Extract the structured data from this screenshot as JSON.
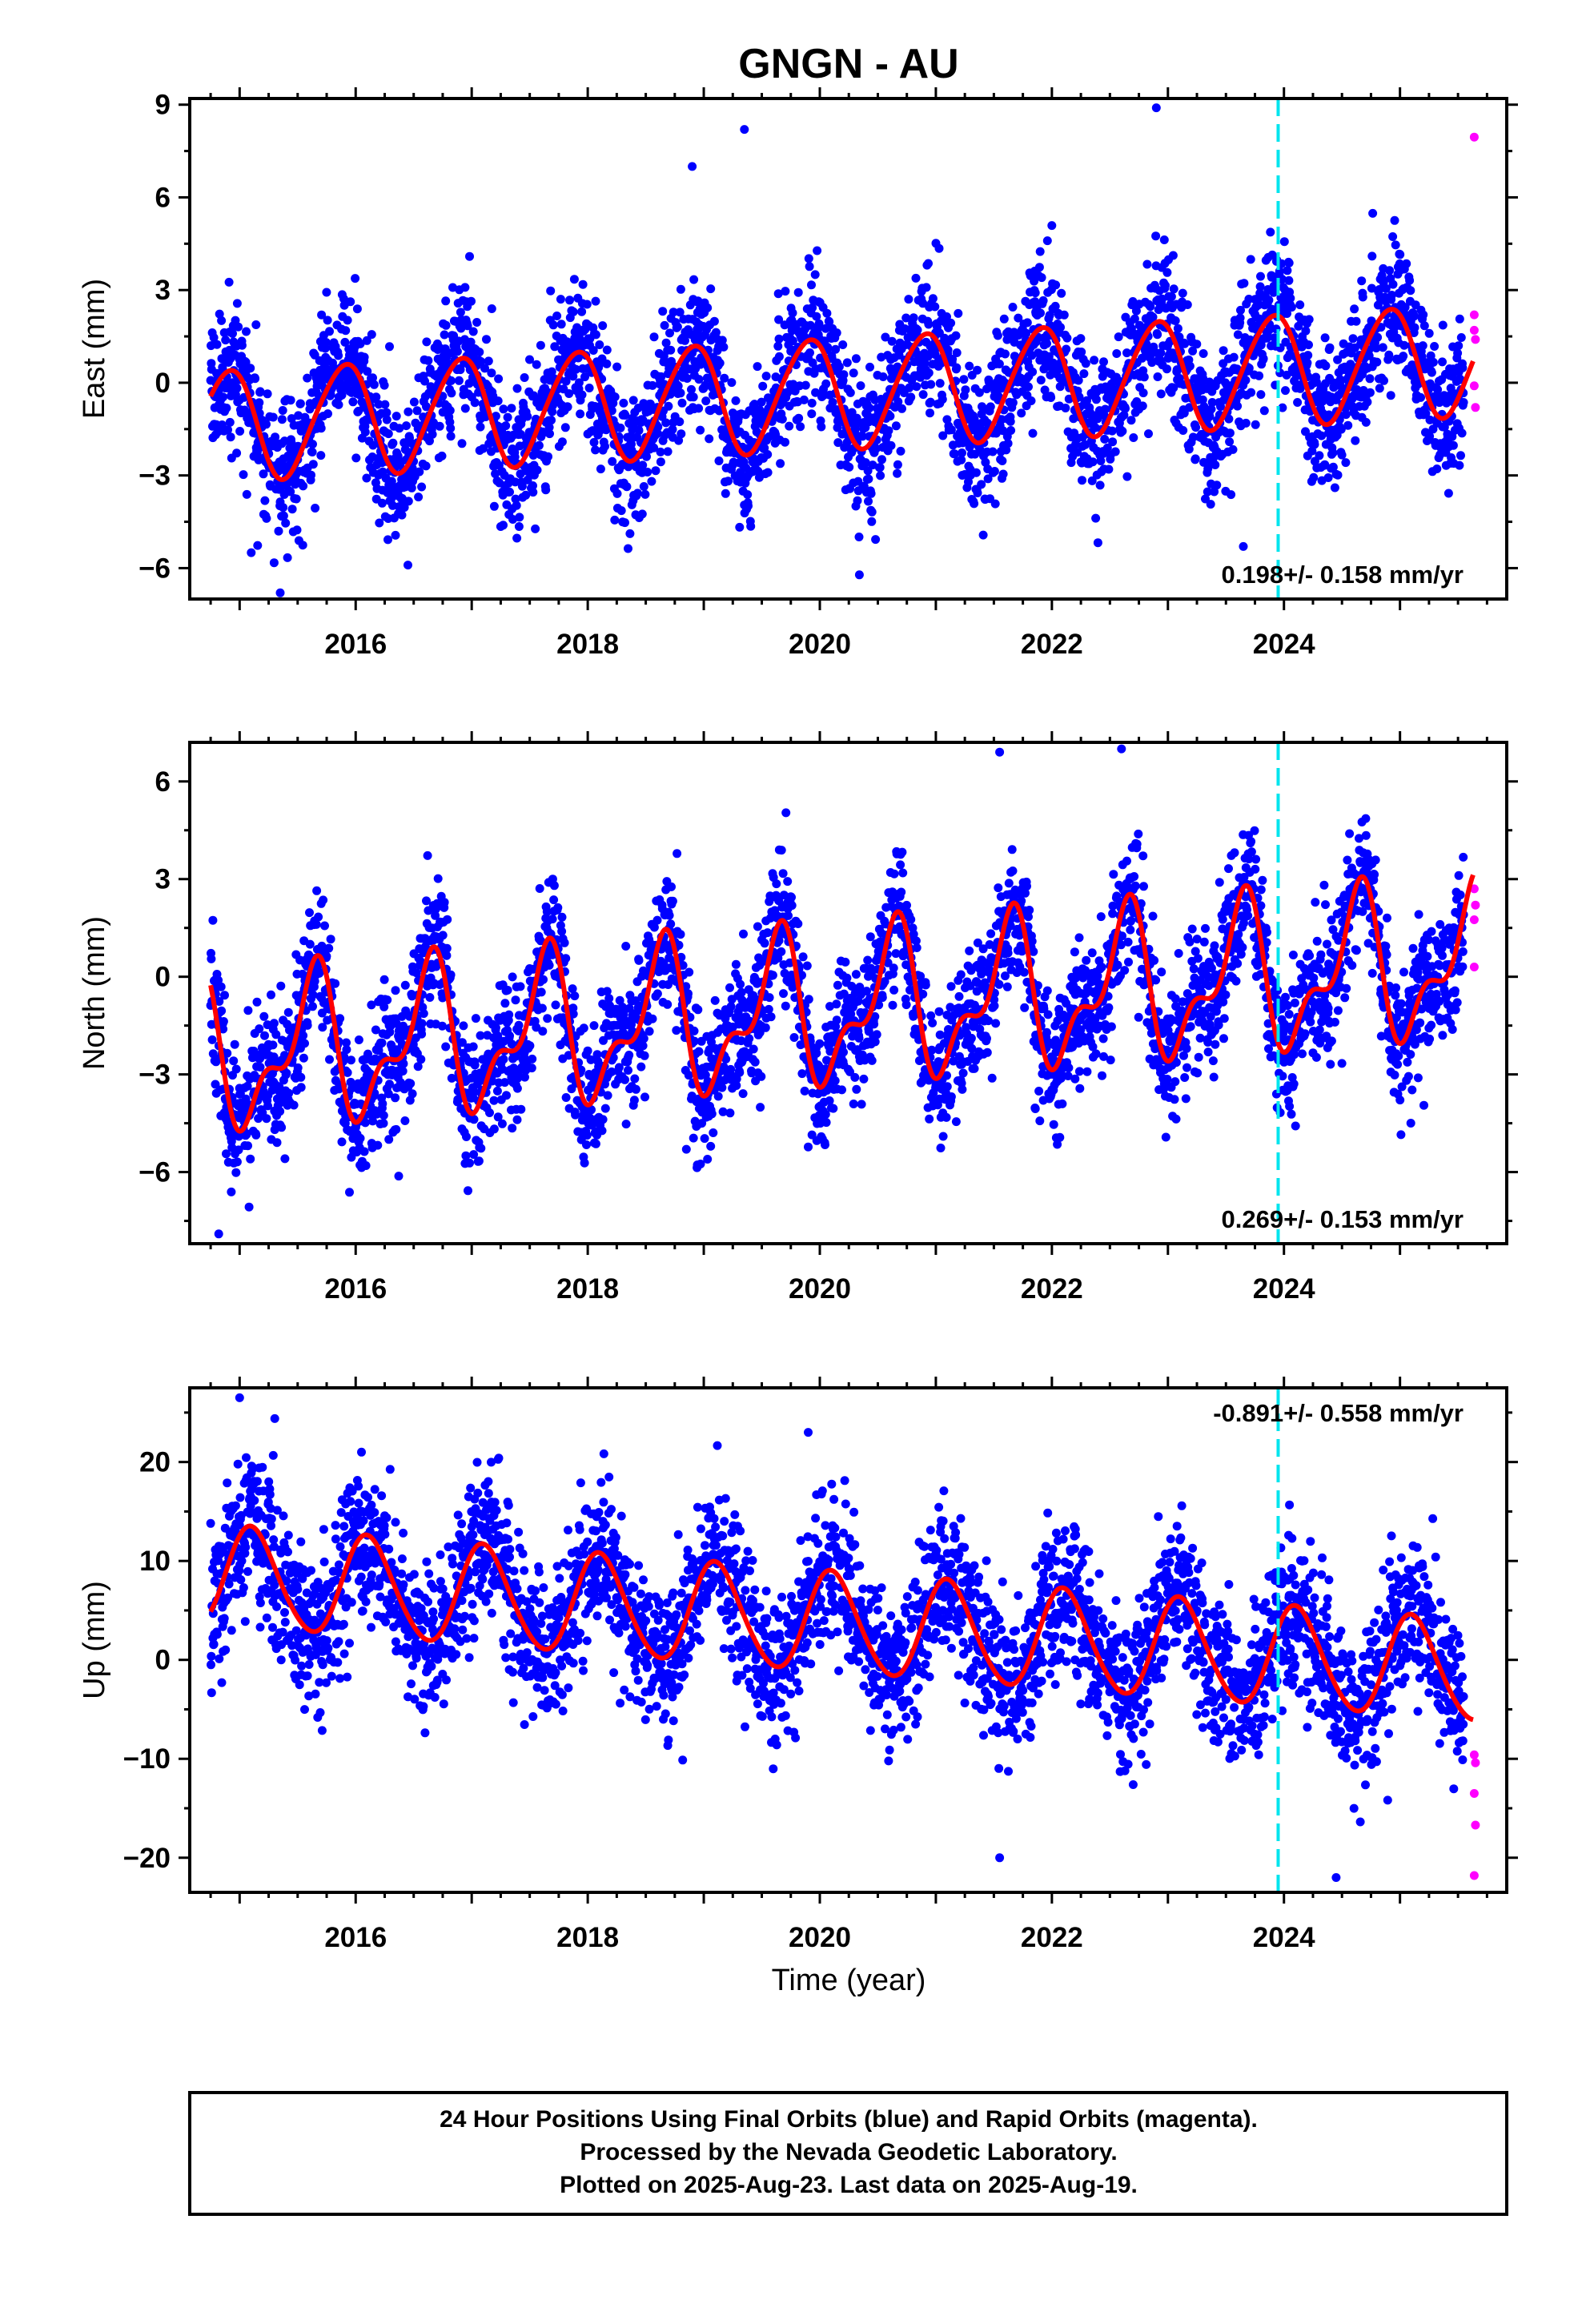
{
  "title": "GNGN - AU",
  "xlabel": "Time (year)",
  "x_tick_labels": [
    "2016",
    "2018",
    "2020",
    "2022",
    "2024"
  ],
  "colors": {
    "final_orbits": "#0000ff",
    "rapid_orbits": "#ff00ff",
    "model": "#ff0000",
    "marker_line": "#00e5ee",
    "frame": "#000000"
  },
  "footer": {
    "line1": "24 Hour Positions Using Final Orbits (blue) and Rapid Orbits (magenta).",
    "line2": "Processed by the Nevada Geodetic Laboratory.",
    "line3": "Plotted on 2025-Aug-23. Last data on 2025-Aug-19."
  },
  "chart_data": [
    {
      "type": "scatter",
      "component": "east",
      "ylabel": "East (mm)",
      "xlim": [
        2014.57,
        2025.92
      ],
      "ylim": [
        -7,
        9.2
      ],
      "yticks": [
        -6,
        -3,
        0,
        3,
        6,
        9
      ],
      "ytick_labels": [
        "−6",
        "−3",
        "0",
        "3",
        "6",
        "9"
      ],
      "x_start": 2014.75,
      "x_end_final": 2025.55,
      "x_end": 2025.63,
      "noise_sd": 1.15,
      "model": {
        "offset": -0.35,
        "rate": 0.198,
        "annual": [
          -1.1,
          1.4
        ],
        "semiannual": [
          0.1,
          0.15
        ]
      },
      "rate_label": "0.198+/- 0.158 mm/yr",
      "rate_label_position": "bottom-right",
      "marker_year": 2023.95,
      "outliers": [
        [
          2019.35,
          8.2
        ],
        [
          2022.9,
          8.9
        ],
        [
          2018.9,
          7.0
        ],
        [
          2015.1,
          -5.5
        ],
        [
          2015.35,
          -6.8
        ],
        [
          2016.45,
          -5.9
        ],
        [
          2023.65,
          -5.3
        ]
      ],
      "rapid_points": [
        [
          2025.64,
          7.95
        ],
        [
          2025.64,
          2.2
        ],
        [
          2025.64,
          1.7
        ],
        [
          2025.65,
          1.4
        ],
        [
          2025.64,
          -0.1
        ],
        [
          2025.65,
          -0.8
        ]
      ]
    },
    {
      "type": "scatter",
      "component": "north",
      "ylabel": "North (mm)",
      "xlim": [
        2014.57,
        2025.92
      ],
      "ylim": [
        -8.2,
        7.2
      ],
      "yticks": [
        -6,
        -3,
        0,
        3,
        6
      ],
      "ytick_labels": [
        "−6",
        "−3",
        "0",
        "3",
        "6"
      ],
      "x_start": 2014.75,
      "x_end_final": 2025.55,
      "x_end": 2025.63,
      "noise_sd": 1.05,
      "model": {
        "offset": -1.05,
        "rate": 0.269,
        "annual": [
          -1.35,
          -1.5
        ],
        "semiannual": [
          0.6,
          -0.85
        ]
      },
      "rate_label": "0.269+/- 0.153 mm/yr",
      "rate_label_position": "bottom-right",
      "marker_year": 2023.95,
      "outliers": [
        [
          2014.82,
          -7.9
        ],
        [
          2021.55,
          6.9
        ],
        [
          2022.6,
          7.0
        ],
        [
          2018.85,
          -5.3
        ],
        [
          2016.95,
          -5.5
        ]
      ],
      "rapid_points": [
        [
          2025.64,
          2.7
        ],
        [
          2025.65,
          2.2
        ],
        [
          2025.64,
          1.75
        ],
        [
          2025.64,
          0.3
        ]
      ]
    },
    {
      "type": "scatter",
      "component": "up",
      "ylabel": "Up (mm)",
      "xlim": [
        2014.57,
        2025.92
      ],
      "ylim": [
        -23.5,
        27.5
      ],
      "yticks": [
        -20,
        -10,
        0,
        10,
        20
      ],
      "ytick_labels": [
        "−20",
        "−10",
        "0",
        "10",
        "20"
      ],
      "x_start": 2014.75,
      "x_end_final": 2025.55,
      "x_end": 2025.63,
      "noise_sd": 3.8,
      "model": {
        "offset": 3.8,
        "rate": -0.891,
        "annual": [
          3.2,
          3.9
        ],
        "semiannual": [
          0.2,
          0.4
        ]
      },
      "rate_label": "-0.891+/- 0.558 mm/yr",
      "rate_label_position": "top-right",
      "marker_year": 2023.95,
      "outliers": [
        [
          2015.0,
          26.5
        ],
        [
          2019.9,
          23.0
        ],
        [
          2016.05,
          21.0
        ],
        [
          2021.55,
          -20.0
        ],
        [
          2024.45,
          -22.0
        ]
      ],
      "rapid_points": [
        [
          2025.64,
          -9.6
        ],
        [
          2025.65,
          -10.4
        ],
        [
          2025.64,
          -13.5
        ],
        [
          2025.65,
          -16.7
        ],
        [
          2025.64,
          -21.8
        ]
      ]
    }
  ]
}
